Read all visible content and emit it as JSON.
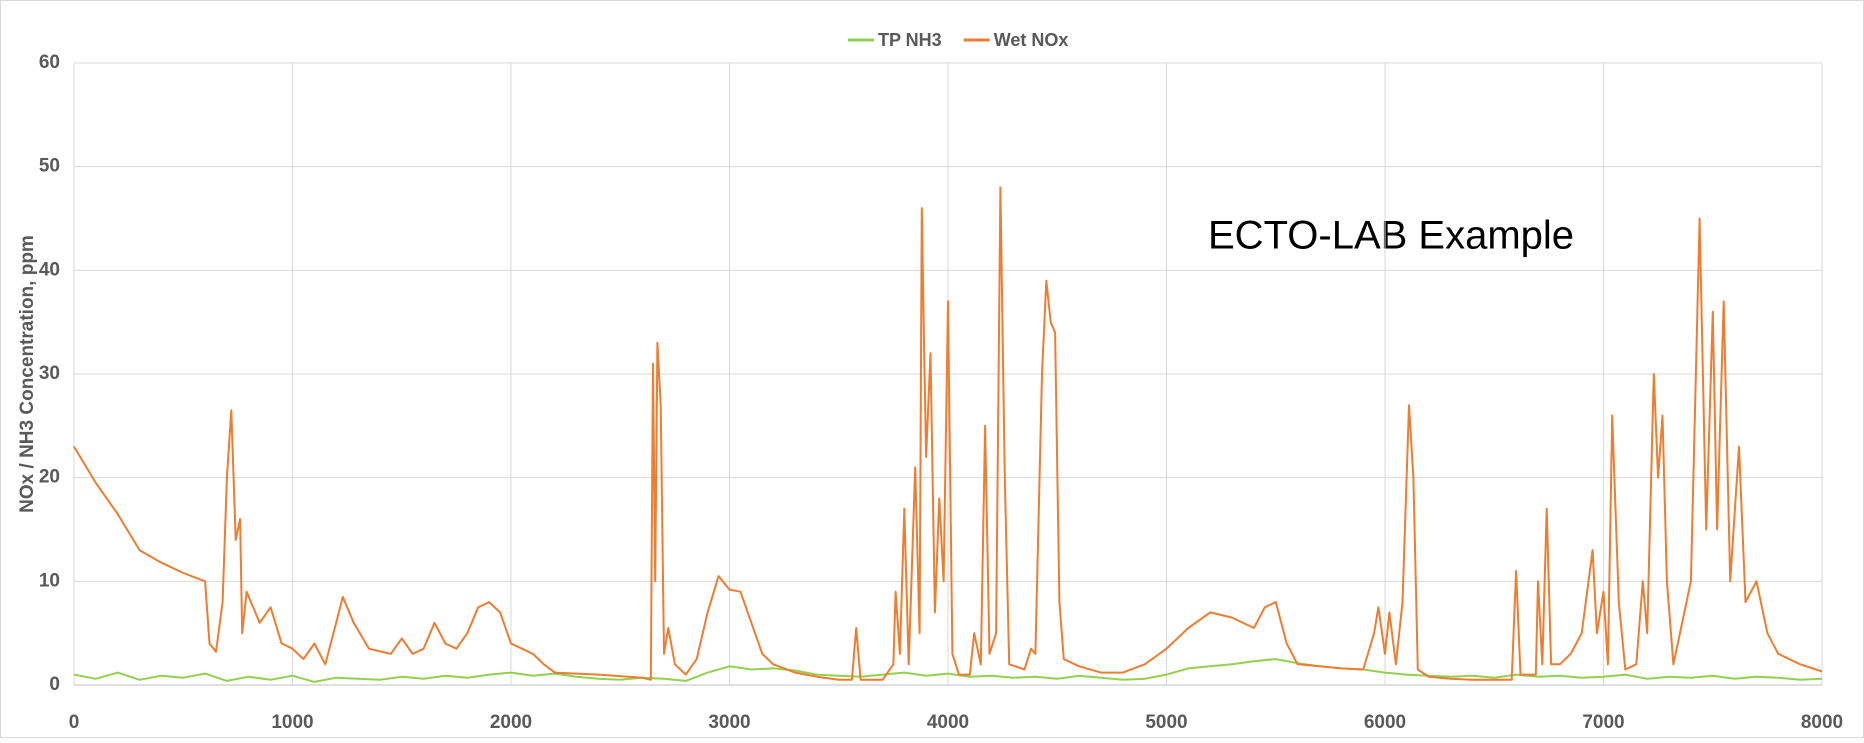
{
  "chart_data": {
    "type": "line",
    "ylabel": "NOx / NH3 Concentration, ppm",
    "annotation": "ECTO-LAB Example",
    "xlim": [
      0,
      8000
    ],
    "xticks": [
      0,
      1000,
      2000,
      3000,
      4000,
      5000,
      6000,
      7000,
      8000
    ],
    "ylim": [
      0,
      60
    ],
    "yticks": [
      0,
      10,
      20,
      30,
      40,
      50,
      60
    ],
    "grid": true,
    "legend": "top",
    "series": [
      {
        "name": "TP NH3",
        "color": "#92d050",
        "x": [
          0,
          100,
          200,
          300,
          400,
          500,
          600,
          700,
          800,
          900,
          1000,
          1100,
          1200,
          1300,
          1400,
          1500,
          1600,
          1700,
          1800,
          1900,
          2000,
          2100,
          2200,
          2300,
          2400,
          2500,
          2600,
          2700,
          2800,
          2900,
          3000,
          3100,
          3200,
          3300,
          3400,
          3500,
          3600,
          3700,
          3800,
          3900,
          4000,
          4100,
          4200,
          4300,
          4400,
          4500,
          4600,
          4700,
          4800,
          4900,
          5000,
          5100,
          5200,
          5300,
          5400,
          5500,
          5600,
          5700,
          5800,
          5900,
          6000,
          6100,
          6200,
          6300,
          6400,
          6500,
          6600,
          6700,
          6800,
          6900,
          7000,
          7100,
          7200,
          7300,
          7400,
          7500,
          7600,
          7700,
          7800,
          7900,
          8000
        ],
        "values": [
          1.0,
          0.6,
          1.2,
          0.5,
          0.9,
          0.7,
          1.1,
          0.4,
          0.8,
          0.5,
          0.9,
          0.3,
          0.7,
          0.6,
          0.5,
          0.8,
          0.6,
          0.9,
          0.7,
          1.0,
          1.2,
          0.9,
          1.1,
          0.8,
          0.6,
          0.5,
          0.7,
          0.6,
          0.4,
          1.2,
          1.8,
          1.5,
          1.6,
          1.4,
          1.0,
          0.9,
          0.8,
          1.0,
          1.2,
          0.9,
          1.1,
          0.8,
          0.9,
          0.7,
          0.8,
          0.6,
          0.9,
          0.7,
          0.5,
          0.6,
          1.0,
          1.6,
          1.8,
          2.0,
          2.3,
          2.5,
          2.1,
          1.8,
          1.6,
          1.5,
          1.2,
          1.0,
          0.9,
          0.8,
          0.9,
          0.7,
          1.0,
          0.8,
          0.9,
          0.7,
          0.8,
          1.0,
          0.6,
          0.8,
          0.7,
          0.9,
          0.6,
          0.8,
          0.7,
          0.5,
          0.6
        ]
      },
      {
        "name": "Wet NOx",
        "color": "#ed7d31",
        "x": [
          0,
          100,
          200,
          300,
          400,
          500,
          600,
          620,
          650,
          680,
          700,
          720,
          740,
          760,
          770,
          790,
          850,
          900,
          950,
          1000,
          1050,
          1100,
          1150,
          1200,
          1230,
          1280,
          1350,
          1450,
          1500,
          1550,
          1600,
          1650,
          1700,
          1750,
          1800,
          1850,
          1900,
          1950,
          2000,
          2050,
          2100,
          2150,
          2200,
          2400,
          2600,
          2640,
          2650,
          2660,
          2670,
          2685,
          2700,
          2720,
          2750,
          2800,
          2850,
          2900,
          2950,
          3000,
          3050,
          3100,
          3150,
          3200,
          3300,
          3400,
          3500,
          3560,
          3580,
          3600,
          3700,
          3750,
          3760,
          3780,
          3800,
          3820,
          3850,
          3870,
          3880,
          3890,
          3900,
          3920,
          3940,
          3960,
          3980,
          4000,
          4020,
          4050,
          4100,
          4120,
          4150,
          4170,
          4190,
          4220,
          4240,
          4260,
          4280,
          4350,
          4380,
          4400,
          4430,
          4450,
          4470,
          4490,
          4510,
          4530,
          4600,
          4700,
          4800,
          4900,
          5000,
          5100,
          5200,
          5300,
          5400,
          5450,
          5500,
          5550,
          5600,
          5700,
          5800,
          5900,
          5950,
          5970,
          6000,
          6020,
          6050,
          6080,
          6110,
          6130,
          6150,
          6200,
          6300,
          6400,
          6580,
          6600,
          6620,
          6690,
          6700,
          6720,
          6740,
          6760,
          6800,
          6850,
          6900,
          6950,
          6970,
          7000,
          7020,
          7040,
          7070,
          7100,
          7150,
          7180,
          7200,
          7230,
          7250,
          7270,
          7290,
          7320,
          7400,
          7440,
          7470,
          7500,
          7520,
          7550,
          7580,
          7620,
          7650,
          7700,
          7750,
          7800,
          7900,
          8000
        ],
        "values": [
          23,
          19.5,
          16.5,
          13,
          11.8,
          10.8,
          10,
          4,
          3.2,
          8,
          20,
          26.5,
          14,
          16,
          5,
          9,
          6,
          7.5,
          4,
          3.5,
          2.5,
          4,
          2,
          6,
          8.5,
          6,
          3.5,
          3,
          4.5,
          3,
          3.5,
          6,
          4,
          3.5,
          5,
          7.5,
          8,
          7,
          4,
          3.5,
          3,
          2,
          1.2,
          1,
          0.7,
          0.5,
          31,
          10,
          33,
          27,
          3,
          5.5,
          2,
          1,
          2.5,
          7,
          10.5,
          9.2,
          9,
          6,
          3,
          2,
          1.2,
          0.8,
          0.5,
          0.5,
          5.5,
          0.5,
          0.5,
          2,
          9,
          3,
          17,
          2,
          21,
          5,
          46,
          33,
          22,
          32,
          7,
          18,
          10,
          37,
          3,
          1,
          1,
          5,
          2,
          25,
          3,
          5,
          48,
          20,
          2,
          1.5,
          3.5,
          3,
          30,
          39,
          35,
          34,
          8,
          2.5,
          1.8,
          1.2,
          1.2,
          2,
          3.5,
          5.5,
          7,
          6.5,
          5.5,
          7.5,
          8,
          4,
          2,
          1.8,
          1.6,
          1.5,
          5,
          7.5,
          3,
          7,
          2,
          8,
          27,
          20,
          1.5,
          0.8,
          0.6,
          0.5,
          0.5,
          11,
          1,
          1,
          10,
          2,
          17,
          2,
          2,
          3,
          5,
          13,
          5,
          9,
          2,
          26,
          8,
          1.5,
          2,
          10,
          5,
          30,
          20,
          26,
          10,
          2,
          10,
          45,
          15,
          36,
          15,
          37,
          10,
          23,
          8,
          10,
          5,
          3,
          2,
          1.3
        ]
      }
    ]
  }
}
